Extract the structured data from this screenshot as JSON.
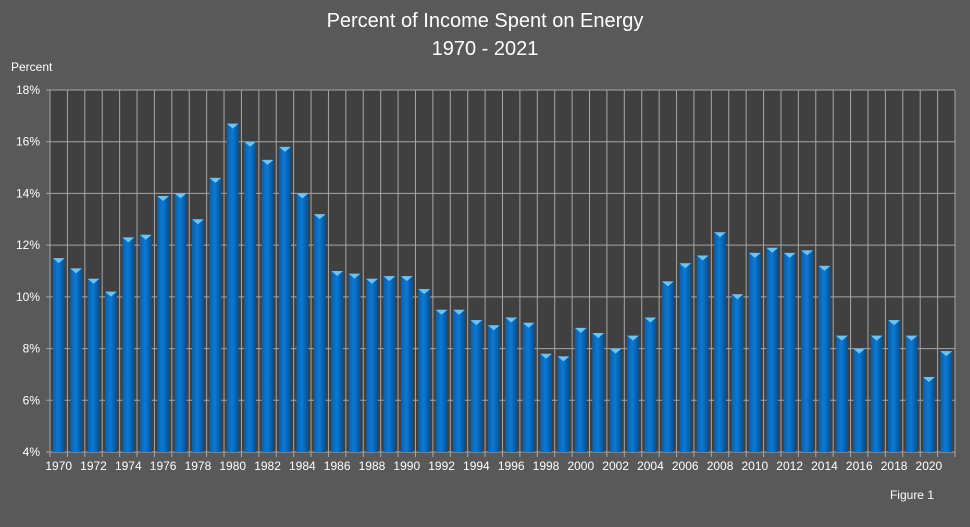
{
  "chart_data": {
    "type": "bar",
    "title": "Percent of Income Spent on Energy",
    "subtitle": "1970 - 2021",
    "ylabel": "Percent",
    "xlabel": "",
    "ylim": [
      4,
      18
    ],
    "yticks": [
      "4%",
      "6%",
      "8%",
      "10%",
      "12%",
      "14%",
      "16%",
      "18%"
    ],
    "grid": true,
    "categories": [
      1970,
      1971,
      1972,
      1973,
      1974,
      1975,
      1976,
      1977,
      1978,
      1979,
      1980,
      1981,
      1982,
      1983,
      1984,
      1985,
      1986,
      1987,
      1988,
      1989,
      1990,
      1991,
      1992,
      1993,
      1994,
      1995,
      1996,
      1997,
      1998,
      1999,
      2000,
      2001,
      2002,
      2003,
      2004,
      2005,
      2006,
      2007,
      2008,
      2009,
      2010,
      2011,
      2012,
      2013,
      2014,
      2015,
      2016,
      2017,
      2018,
      2019,
      2020,
      2021
    ],
    "values": [
      11.5,
      11.1,
      10.7,
      10.2,
      12.3,
      12.4,
      13.9,
      14.0,
      13.0,
      14.6,
      16.7,
      16.0,
      15.3,
      15.8,
      14.0,
      13.2,
      11.0,
      10.9,
      10.7,
      10.8,
      10.8,
      10.3,
      9.5,
      9.5,
      9.1,
      8.9,
      9.2,
      9.0,
      7.8,
      7.7,
      8.8,
      8.6,
      8.0,
      8.5,
      9.2,
      10.6,
      11.3,
      11.6,
      12.5,
      10.1,
      11.7,
      11.9,
      11.7,
      11.8,
      11.2,
      8.5,
      8.0,
      8.5,
      9.1,
      8.5,
      6.9,
      7.9
    ],
    "bar_color": "#0070C0",
    "background_color": "#595959",
    "plot_background_color": "#404040"
  },
  "figure_label": "Figure 1"
}
